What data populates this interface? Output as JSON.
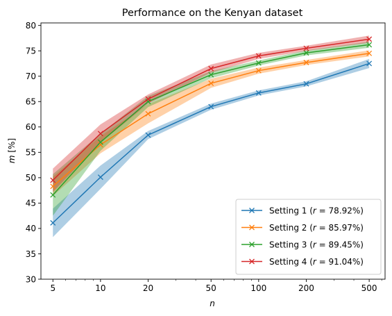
{
  "chart_data": {
    "type": "line",
    "title": "Performance on the Kenyan dataset",
    "xlabel": "n",
    "ylabel": "m [%]",
    "x_scale": "log",
    "xlim": [
      4.2,
      630
    ],
    "ylim": [
      30,
      80.5
    ],
    "x": [
      5,
      10,
      20,
      50,
      100,
      200,
      500
    ],
    "x_tick_labels": [
      "5",
      "10",
      "20",
      "50",
      "100",
      "200",
      "500"
    ],
    "y_ticks": [
      30,
      35,
      40,
      45,
      50,
      55,
      60,
      65,
      70,
      75,
      80
    ],
    "grid": false,
    "legend_position": "lower right",
    "series": [
      {
        "name": "Setting 1 (r = 78.92%)",
        "name_prefix": "Setting 1 (",
        "name_math": "r",
        "name_suffix": " = 78.92%)",
        "color": "#1f77b4",
        "values": [
          41.1,
          50.1,
          58.4,
          64.0,
          66.7,
          68.5,
          72.5
        ],
        "lower": [
          38.3,
          47.8,
          57.6,
          63.4,
          66.2,
          68.0,
          71.6
        ],
        "upper": [
          43.9,
          52.4,
          59.2,
          64.6,
          67.2,
          69.0,
          73.4
        ]
      },
      {
        "name": "Setting 2 (r = 85.97%)",
        "name_prefix": "Setting 2 (",
        "name_math": "r",
        "name_suffix": " = 85.97%)",
        "color": "#ff7f0e",
        "values": [
          48.3,
          56.5,
          62.6,
          68.6,
          71.1,
          72.7,
          74.5
        ],
        "lower": [
          46.4,
          54.8,
          60.7,
          67.7,
          70.5,
          72.2,
          73.9
        ],
        "upper": [
          50.2,
          58.2,
          64.5,
          69.5,
          71.7,
          73.2,
          75.1
        ]
      },
      {
        "name": "Setting 3 (r = 89.45%)",
        "name_prefix": "Setting 3 (",
        "name_math": "r",
        "name_suffix": " = 89.45%)",
        "color": "#2ca02c",
        "values": [
          46.6,
          57.0,
          65.0,
          70.3,
          72.6,
          74.6,
          76.2
        ],
        "lower": [
          42.5,
          55.3,
          63.9,
          69.6,
          72.1,
          74.1,
          75.6
        ],
        "upper": [
          50.7,
          58.7,
          66.1,
          71.0,
          73.1,
          75.1,
          76.8
        ]
      },
      {
        "name": "Setting 4 (r = 91.04%)",
        "name_prefix": "Setting 4 (",
        "name_math": "r",
        "name_suffix": " = 91.04%)",
        "color": "#d62728",
        "values": [
          49.5,
          58.7,
          65.5,
          71.5,
          74.0,
          75.5,
          77.3
        ],
        "lower": [
          47.2,
          56.9,
          64.6,
          70.7,
          73.4,
          75.0,
          76.6
        ],
        "upper": [
          51.8,
          60.5,
          66.4,
          72.3,
          74.6,
          76.0,
          78.0
        ]
      }
    ]
  }
}
